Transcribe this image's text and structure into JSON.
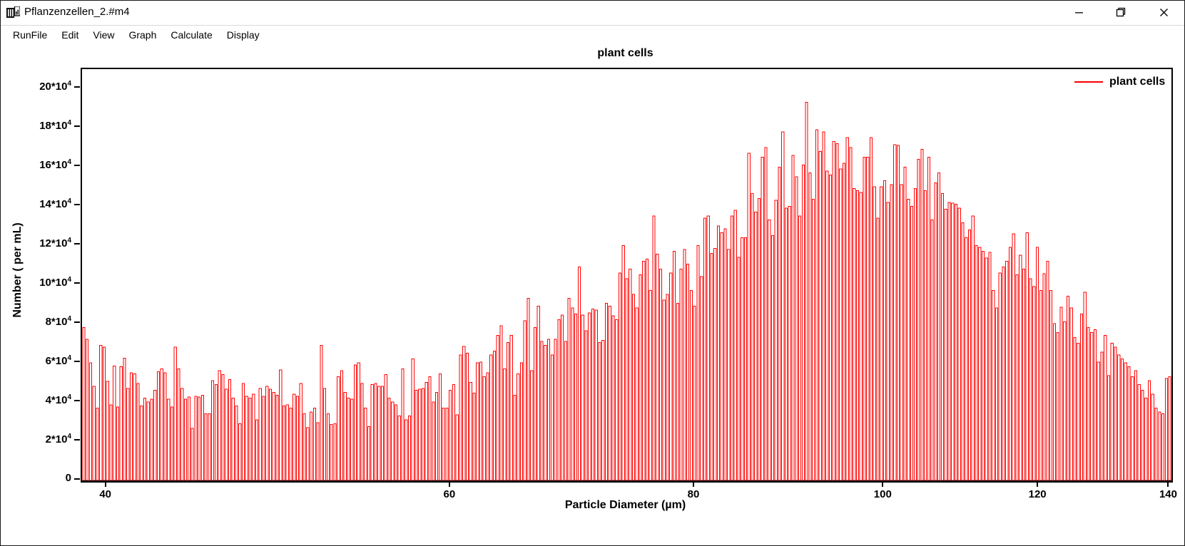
{
  "window": {
    "title": "Pflanzenzellen_2.#m4",
    "controls": {
      "minimize": "minimize",
      "maximize": "restore",
      "close": "close"
    }
  },
  "menu": {
    "items": [
      "RunFile",
      "Edit",
      "View",
      "Graph",
      "Calculate",
      "Display"
    ]
  },
  "chart_data": {
    "type": "bar",
    "title": "plant cells",
    "xlabel": "Particle Diameter (µm)",
    "ylabel": "Number ( per mL)",
    "legend": [
      {
        "name": "plant cells",
        "color": "#ff0000"
      }
    ],
    "x_scale": "log",
    "x_range_um": [
      38.85,
      140.3
    ],
    "x_ticks": [
      40,
      60,
      80,
      100,
      120,
      140
    ],
    "y_unit": "counts of 10^4 per mL",
    "ylim": [
      0,
      21
    ],
    "y_ticks": [
      {
        "value": 0,
        "mant": "0",
        "exp": ""
      },
      {
        "value": 2,
        "mant": "2*10",
        "exp": "4"
      },
      {
        "value": 4,
        "mant": "4*10",
        "exp": "4"
      },
      {
        "value": 6,
        "mant": "6*10",
        "exp": "4"
      },
      {
        "value": 8,
        "mant": "8*10",
        "exp": "4"
      },
      {
        "value": 10,
        "mant": "10*10",
        "exp": "4"
      },
      {
        "value": 12,
        "mant": "12*10",
        "exp": "4"
      },
      {
        "value": 14,
        "mant": "14*10",
        "exp": "4"
      },
      {
        "value": 16,
        "mant": "16*10",
        "exp": "4"
      },
      {
        "value": 18,
        "mant": "18*10",
        "exp": "4"
      },
      {
        "value": 20,
        "mant": "20*10",
        "exp": "4"
      }
    ],
    "bar_style": {
      "stroke": "#ff0000",
      "fill": "#ffffff"
    },
    "values_x1e4": [
      7.8,
      7.2,
      6.0,
      4.8,
      3.7,
      6.9,
      6.8,
      5.05,
      3.85,
      5.85,
      3.75,
      5.8,
      6.25,
      4.7,
      5.5,
      5.45,
      4.95,
      3.8,
      4.2,
      4.0,
      4.15,
      4.6,
      5.55,
      5.7,
      5.5,
      4.15,
      3.75,
      6.8,
      5.7,
      4.7,
      4.15,
      4.25,
      2.65,
      4.3,
      4.25,
      4.35,
      3.4,
      3.4,
      5.1,
      4.9,
      5.6,
      5.4,
      4.65,
      5.15,
      4.2,
      3.8,
      2.9,
      4.95,
      4.3,
      4.2,
      4.4,
      3.1,
      4.7,
      4.3,
      4.8,
      4.65,
      4.5,
      4.35,
      5.65,
      3.8,
      3.85,
      3.7,
      4.4,
      4.3,
      4.95,
      3.4,
      2.7,
      3.5,
      3.7,
      2.95,
      6.9,
      4.7,
      3.4,
      2.85,
      2.9,
      5.3,
      5.6,
      4.5,
      4.2,
      4.15,
      5.9,
      6.0,
      4.95,
      3.7,
      2.75,
      4.9,
      4.95,
      4.8,
      4.8,
      5.4,
      4.2,
      4.0,
      3.85,
      3.3,
      5.7,
      3.1,
      3.3,
      6.2,
      4.6,
      4.65,
      4.7,
      5.0,
      5.3,
      4.0,
      4.5,
      5.45,
      3.7,
      3.7,
      4.6,
      4.9,
      3.35,
      6.4,
      6.85,
      6.5,
      5.0,
      4.45,
      6.0,
      6.05,
      5.3,
      5.5,
      6.4,
      6.6,
      7.4,
      7.9,
      5.7,
      7.05,
      7.4,
      4.35,
      5.45,
      6.0,
      8.15,
      9.3,
      5.6,
      7.8,
      8.9,
      7.1,
      6.9,
      7.2,
      6.4,
      7.2,
      8.2,
      8.45,
      7.1,
      9.3,
      8.8,
      8.5,
      10.9,
      8.45,
      7.65,
      8.55,
      8.75,
      8.7,
      7.05,
      7.15,
      9.05,
      8.9,
      8.4,
      8.2,
      10.6,
      12.0,
      10.3,
      10.8,
      9.5,
      8.8,
      10.5,
      11.2,
      11.3,
      9.7,
      13.5,
      11.55,
      10.8,
      9.2,
      9.5,
      10.6,
      11.7,
      9.05,
      10.8,
      11.8,
      11.05,
      9.7,
      8.9,
      12.0,
      10.4,
      13.4,
      13.5,
      11.6,
      11.85,
      13.0,
      12.65,
      12.85,
      11.8,
      13.5,
      13.8,
      11.4,
      12.4,
      12.4,
      16.7,
      14.65,
      13.7,
      14.4,
      16.5,
      17.0,
      13.3,
      12.5,
      14.3,
      16.0,
      17.8,
      13.9,
      14.0,
      16.6,
      15.5,
      13.5,
      16.1,
      19.3,
      15.7,
      14.35,
      17.9,
      16.8,
      17.8,
      15.8,
      15.6,
      17.3,
      17.2,
      15.9,
      16.2,
      17.5,
      17.0,
      14.9,
      14.8,
      14.7,
      16.5,
      16.5,
      17.5,
      15.0,
      13.4,
      15.0,
      15.3,
      14.2,
      15.1,
      17.15,
      17.1,
      15.1,
      16.0,
      14.35,
      14.0,
      14.9,
      16.4,
      16.9,
      14.8,
      16.5,
      13.3,
      15.2,
      15.7,
      14.65,
      13.85,
      14.2,
      14.15,
      14.1,
      13.9,
      13.15,
      12.4,
      12.8,
      13.5,
      12.0,
      11.9,
      11.7,
      11.35,
      11.65,
      9.7,
      8.8,
      10.6,
      10.9,
      11.2,
      11.9,
      12.6,
      10.5,
      11.5,
      10.8,
      12.65,
      10.3,
      9.9,
      11.9,
      9.7,
      10.55,
      11.2,
      9.7,
      8.0,
      7.55,
      8.85,
      8.1,
      9.4,
      8.8,
      7.3,
      7.0,
      8.5,
      9.6,
      7.8,
      7.55,
      7.7,
      6.05,
      6.55,
      7.4,
      5.35,
      7.0,
      6.8,
      6.4,
      6.2,
      6.0,
      5.8,
      5.3,
      5.6,
      4.9,
      4.6,
      4.2,
      5.1,
      4.4,
      3.7,
      3.5,
      3.4,
      5.2,
      5.3
    ]
  }
}
